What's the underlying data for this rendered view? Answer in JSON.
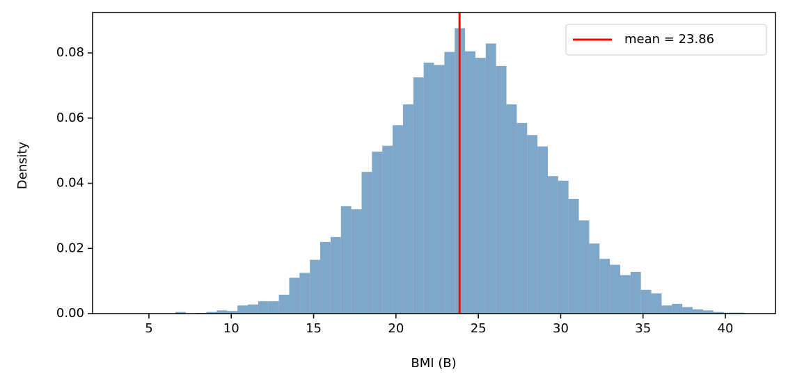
{
  "chart_data": {
    "type": "histogram",
    "xlabel": "BMI (B)",
    "ylabel": "Density",
    "bins": [
      3.47,
      4.098,
      4.726,
      5.354,
      5.982,
      6.61,
      7.238,
      7.866,
      8.494,
      9.122,
      9.75,
      10.378,
      11.006,
      11.634,
      12.262,
      12.89,
      13.518,
      14.146,
      14.774,
      15.402,
      16.03,
      16.658,
      17.286,
      17.914,
      18.542,
      19.17,
      19.798,
      20.426,
      21.054,
      21.682,
      22.31,
      22.938,
      23.566,
      24.194,
      24.822,
      25.45,
      26.078,
      26.706,
      27.334,
      27.962,
      28.59,
      29.218,
      29.846,
      30.474,
      31.102,
      31.73,
      32.358,
      32.986,
      33.614,
      34.242,
      34.87,
      35.498,
      36.126,
      36.754,
      37.382,
      38.01,
      38.638,
      39.266,
      39.894,
      40.522,
      41.15
    ],
    "values": [
      0.0001,
      0,
      0,
      0,
      0,
      0.0005,
      0.0001,
      0.0002,
      0.0005,
      0.001,
      0.0008,
      0.0025,
      0.0028,
      0.0038,
      0.0038,
      0.0058,
      0.011,
      0.0125,
      0.0165,
      0.022,
      0.0235,
      0.033,
      0.032,
      0.0435,
      0.0497,
      0.0515,
      0.0578,
      0.0642,
      0.0725,
      0.077,
      0.0763,
      0.0803,
      0.0876,
      0.0805,
      0.0785,
      0.0829,
      0.076,
      0.0642,
      0.0585,
      0.0548,
      0.0513,
      0.0422,
      0.0408,
      0.0352,
      0.0286,
      0.0215,
      0.0168,
      0.015,
      0.0118,
      0.0128,
      0.0073,
      0.0062,
      0.0025,
      0.003,
      0.002,
      0.0013,
      0.001,
      0.0005,
      0.0003,
      0.0003
    ],
    "color": "#7ea7c9",
    "mean_line": {
      "value": 23.86,
      "label": "mean = 23.86",
      "color": "#ff0000"
    },
    "legend": "upper right",
    "xlim": [
      1.58,
      43.04
    ],
    "xticks": [
      5,
      10,
      15,
      20,
      25,
      30,
      35,
      40
    ],
    "ylim": [
      0,
      0.0924
    ],
    "yticks": [
      {
        "value": 0,
        "label": "0.00"
      },
      {
        "value": 0.02,
        "label": "0.02"
      },
      {
        "value": 0.04,
        "label": "0.04"
      },
      {
        "value": 0.06,
        "label": "0.06"
      },
      {
        "value": 0.08,
        "label": "0.08"
      }
    ]
  }
}
